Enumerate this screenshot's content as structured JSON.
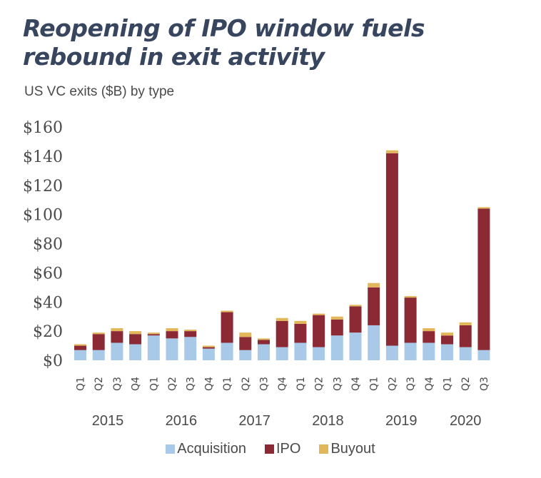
{
  "header": {
    "title": "Reopening of IPO window fuels rebound in exit activity",
    "subtitle": "US VC exits ($B) by type"
  },
  "colors": {
    "acquisition": "#a9c9e8",
    "ipo": "#8b2a35",
    "buyout": "#e2b75a"
  },
  "chart_data": {
    "type": "bar",
    "stacked": true,
    "title": "Reopening of IPO window fuels rebound in exit activity",
    "subtitle": "US VC exits ($B) by type",
    "categories": [
      "Q1",
      "Q2",
      "Q3",
      "Q4",
      "Q1",
      "Q2",
      "Q3",
      "Q4",
      "Q1",
      "Q2",
      "Q3",
      "Q4",
      "Q1",
      "Q2",
      "Q3",
      "Q4",
      "Q1",
      "Q2",
      "Q3",
      "Q4",
      "Q1",
      "Q2",
      "Q3"
    ],
    "years": [
      {
        "label": "2015",
        "start": 0,
        "end": 3
      },
      {
        "label": "2016",
        "start": 4,
        "end": 7
      },
      {
        "label": "2017",
        "start": 8,
        "end": 11
      },
      {
        "label": "2018",
        "start": 12,
        "end": 15
      },
      {
        "label": "2019",
        "start": 16,
        "end": 19
      },
      {
        "label": "2020",
        "start": 20,
        "end": 22
      }
    ],
    "series": [
      {
        "name": "Acquisition",
        "color": "#a9c9e8",
        "values": [
          7,
          7,
          12,
          11,
          17,
          15,
          16,
          8,
          12,
          7,
          11,
          9,
          12,
          9,
          17,
          19,
          24,
          10,
          12,
          12,
          11,
          9,
          7
        ]
      },
      {
        "name": "IPO",
        "color": "#8b2a35",
        "values": [
          3,
          11,
          8,
          7,
          1,
          5,
          4,
          1,
          21,
          9,
          3,
          18,
          13,
          22,
          11,
          18,
          26,
          132,
          31,
          8,
          6,
          15,
          97
        ]
      },
      {
        "name": "Buyout",
        "color": "#e2b75a",
        "values": [
          1,
          1,
          2,
          2,
          1,
          2,
          1,
          1,
          1,
          3,
          1,
          2,
          2,
          1,
          2,
          1,
          3,
          2,
          1,
          2,
          2,
          2,
          1
        ]
      }
    ],
    "ylim": [
      0,
      160
    ],
    "yticks": [
      0,
      20,
      40,
      60,
      80,
      100,
      120,
      140,
      160
    ],
    "ytick_labels": [
      "$0",
      "$20",
      "$40",
      "$60",
      "$80",
      "$100",
      "$120",
      "$140",
      "$160"
    ],
    "grid": false,
    "legend": "bottom",
    "legend_entries": [
      "Acquisition",
      "IPO",
      "Buyout"
    ]
  }
}
